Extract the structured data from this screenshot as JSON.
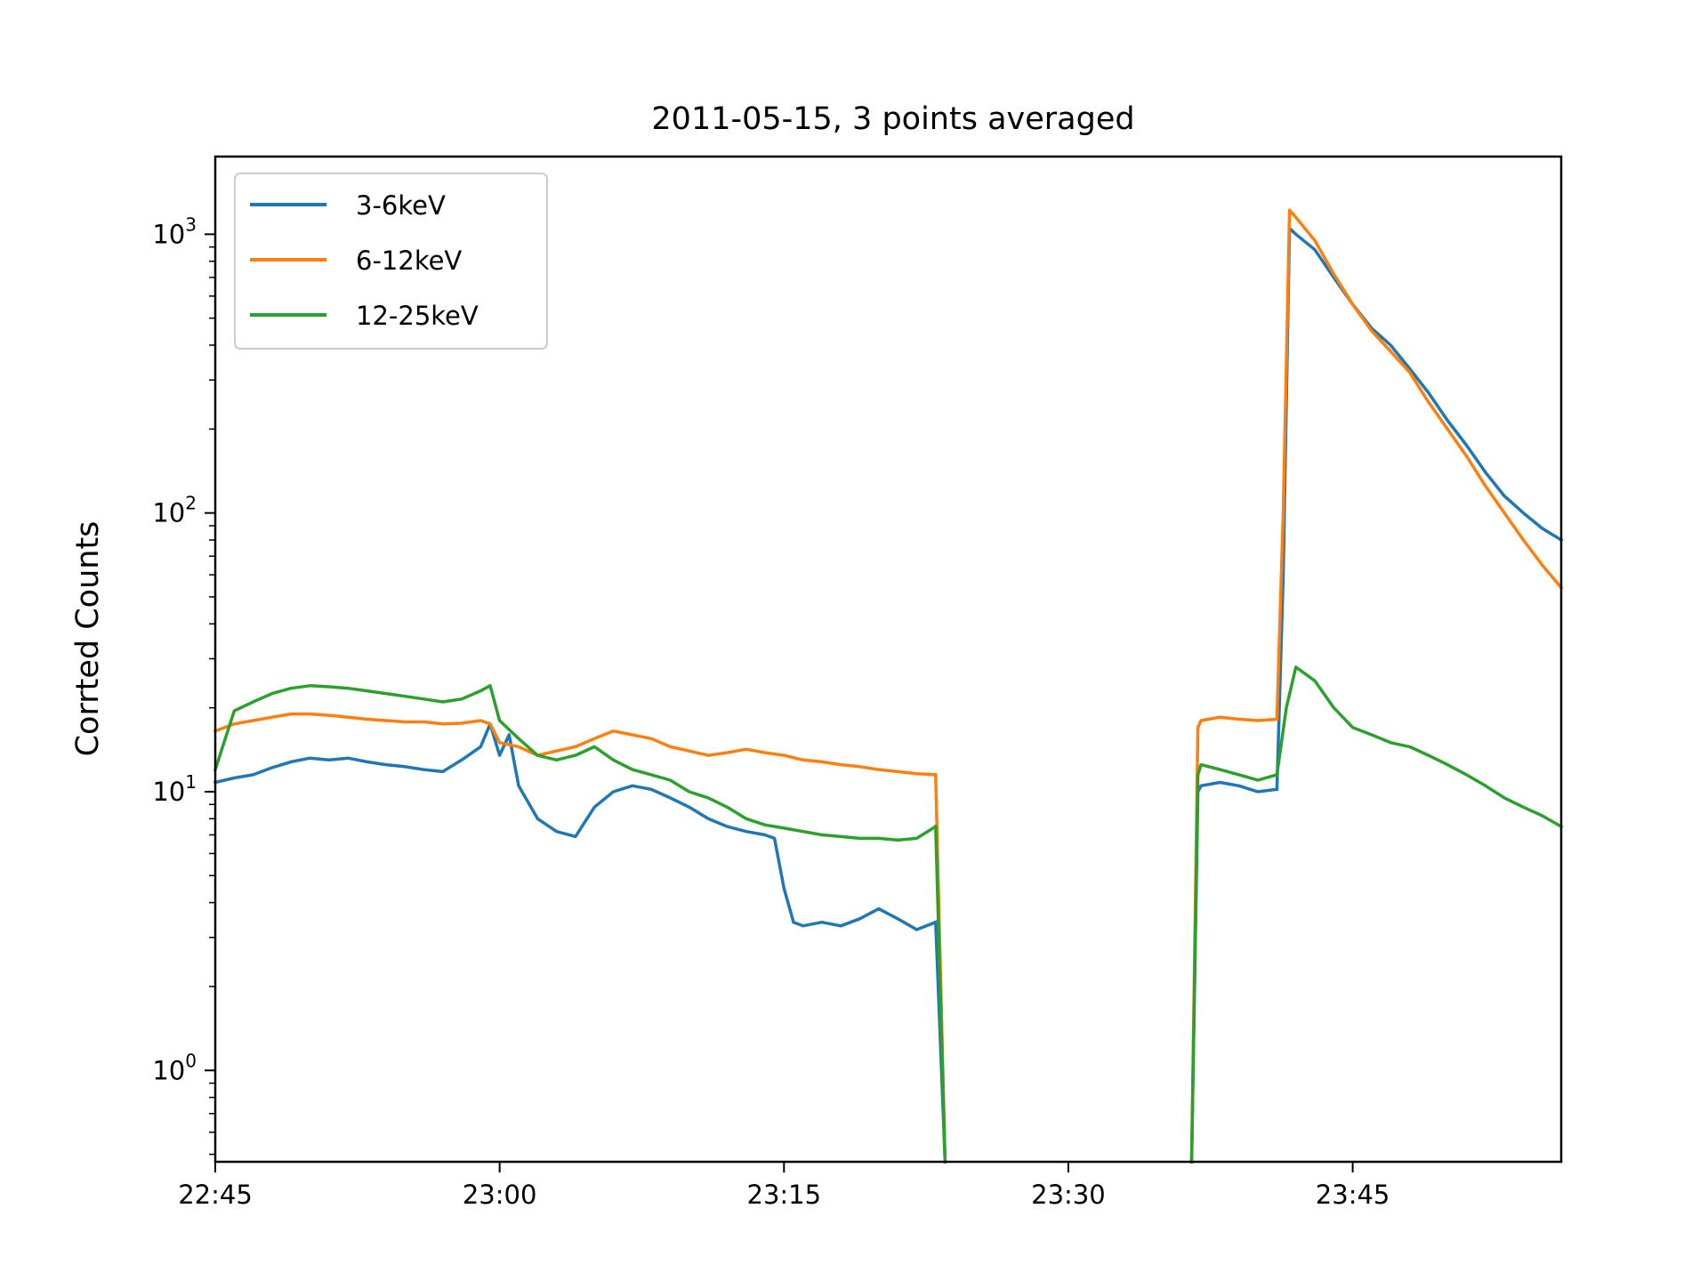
{
  "chart_data": {
    "type": "line",
    "title": "2011-05-15, 3 points averaged",
    "xlabel": "",
    "ylabel": "Corrted Counts",
    "y_scale": "log",
    "ylim": [
      0.47,
      1900
    ],
    "xlim": [
      "22:45",
      "23:56"
    ],
    "x_ticks": [
      "22:45",
      "23:00",
      "23:15",
      "23:30",
      "23:45"
    ],
    "y_ticks": [
      {
        "value": 1,
        "base": "10",
        "exp": "0"
      },
      {
        "value": 10,
        "base": "10",
        "exp": "1"
      },
      {
        "value": 100,
        "base": "10",
        "exp": "2"
      },
      {
        "value": 1000,
        "base": "10",
        "exp": "3"
      }
    ],
    "grid": false,
    "legend_position": "top-left",
    "series": [
      {
        "name": "3-6keV",
        "color": "#1f77b4",
        "segments": [
          [
            [
              "22:45",
              10.8
            ],
            [
              "22:46",
              11.2
            ],
            [
              "22:47",
              11.5
            ],
            [
              "22:48",
              12.2
            ],
            [
              "22:49",
              12.8
            ],
            [
              "22:50",
              13.2
            ],
            [
              "22:51",
              13.0
            ],
            [
              "22:52",
              13.2
            ],
            [
              "22:53",
              12.8
            ],
            [
              "22:54",
              12.5
            ],
            [
              "22:55",
              12.3
            ],
            [
              "22:56",
              12.0
            ],
            [
              "22:57",
              11.8
            ],
            [
              "22:58",
              13.0
            ],
            [
              "22:59",
              14.5
            ],
            [
              "22:59:30",
              17.5
            ],
            [
              "23:00",
              13.5
            ],
            [
              "23:00:30",
              16.0
            ],
            [
              "23:01",
              10.5
            ],
            [
              "23:02",
              8.0
            ],
            [
              "23:03",
              7.2
            ],
            [
              "23:04",
              6.9
            ],
            [
              "23:05",
              8.8
            ],
            [
              "23:06",
              10.0
            ],
            [
              "23:07",
              10.5
            ],
            [
              "23:08",
              10.2
            ],
            [
              "23:09",
              9.5
            ],
            [
              "23:10",
              8.8
            ],
            [
              "23:11",
              8.0
            ],
            [
              "23:12",
              7.5
            ],
            [
              "23:13",
              7.2
            ],
            [
              "23:14",
              7.0
            ],
            [
              "23:14:30",
              6.8
            ],
            [
              "23:15",
              4.5
            ],
            [
              "23:15:30",
              3.4
            ],
            [
              "23:16",
              3.3
            ],
            [
              "23:17",
              3.4
            ],
            [
              "23:18",
              3.3
            ],
            [
              "23:19",
              3.5
            ],
            [
              "23:20",
              3.8
            ],
            [
              "23:21",
              3.5
            ],
            [
              "23:22",
              3.2
            ],
            [
              "23:23",
              3.4
            ]
          ],
          [
            [
              "23:23",
              3.4
            ],
            [
              "23:23:30",
              0.47
            ]
          ]
        ]
      },
      {
        "name": "6-12keV",
        "color": "#ff7f0e",
        "segments": [
          [
            [
              "22:45",
              16.5
            ],
            [
              "22:46",
              17.5
            ],
            [
              "22:47",
              18.0
            ],
            [
              "22:48",
              18.5
            ],
            [
              "22:49",
              19.0
            ],
            [
              "22:50",
              19.0
            ],
            [
              "22:51",
              18.8
            ],
            [
              "22:52",
              18.5
            ],
            [
              "22:53",
              18.2
            ],
            [
              "22:54",
              18.0
            ],
            [
              "22:55",
              17.8
            ],
            [
              "22:56",
              17.8
            ],
            [
              "22:57",
              17.5
            ],
            [
              "22:58",
              17.6
            ],
            [
              "22:59",
              18.0
            ],
            [
              "22:59:30",
              17.5
            ],
            [
              "23:00",
              15.0
            ],
            [
              "23:01",
              14.5
            ],
            [
              "23:02",
              13.5
            ],
            [
              "23:03",
              14.0
            ],
            [
              "23:04",
              14.5
            ],
            [
              "23:05",
              15.5
            ],
            [
              "23:06",
              16.5
            ],
            [
              "23:07",
              16.0
            ],
            [
              "23:08",
              15.5
            ],
            [
              "23:09",
              14.5
            ],
            [
              "23:10",
              14.0
            ],
            [
              "23:11",
              13.5
            ],
            [
              "23:12",
              13.8
            ],
            [
              "23:13",
              14.2
            ],
            [
              "23:14",
              13.8
            ],
            [
              "23:15",
              13.5
            ],
            [
              "23:16",
              13.0
            ],
            [
              "23:17",
              12.8
            ],
            [
              "23:18",
              12.5
            ],
            [
              "23:19",
              12.3
            ],
            [
              "23:20",
              12.0
            ],
            [
              "23:21",
              11.8
            ],
            [
              "23:22",
              11.6
            ],
            [
              "23:23",
              11.5
            ]
          ],
          [
            [
              "23:23",
              11.5
            ],
            [
              "23:23:30",
              0.47
            ]
          ]
        ]
      },
      {
        "name": "12-25keV",
        "color": "#2ca02c",
        "segments": [
          [
            [
              "22:45",
              12.0
            ],
            [
              "22:46",
              19.5
            ],
            [
              "22:47",
              21.0
            ],
            [
              "22:48",
              22.5
            ],
            [
              "22:49",
              23.5
            ],
            [
              "22:50",
              24.0
            ],
            [
              "22:51",
              23.8
            ],
            [
              "22:52",
              23.5
            ],
            [
              "22:53",
              23.0
            ],
            [
              "22:54",
              22.5
            ],
            [
              "22:55",
              22.0
            ],
            [
              "22:56",
              21.5
            ],
            [
              "22:57",
              21.0
            ],
            [
              "22:58",
              21.5
            ],
            [
              "22:59",
              23.0
            ],
            [
              "22:59:30",
              24.0
            ],
            [
              "23:00",
              18.0
            ],
            [
              "23:01",
              15.5
            ],
            [
              "23:02",
              13.5
            ],
            [
              "23:03",
              13.0
            ],
            [
              "23:04",
              13.5
            ],
            [
              "23:05",
              14.5
            ],
            [
              "23:06",
              13.0
            ],
            [
              "23:07",
              12.0
            ],
            [
              "23:08",
              11.5
            ],
            [
              "23:09",
              11.0
            ],
            [
              "23:10",
              10.0
            ],
            [
              "23:11",
              9.5
            ],
            [
              "23:12",
              8.8
            ],
            [
              "23:13",
              8.0
            ],
            [
              "23:14",
              7.6
            ],
            [
              "23:15",
              7.4
            ],
            [
              "23:16",
              7.2
            ],
            [
              "23:17",
              7.0
            ],
            [
              "23:18",
              6.9
            ],
            [
              "23:19",
              6.8
            ],
            [
              "23:20",
              6.8
            ],
            [
              "23:21",
              6.7
            ],
            [
              "23:22",
              6.8
            ],
            [
              "23:23",
              7.5
            ]
          ],
          [
            [
              "23:23",
              7.5
            ],
            [
              "23:23:30",
              0.47
            ]
          ]
        ]
      },
      {
        "name": "3-6keV",
        "color": "#1f77b4",
        "segments": [
          [
            [
              "23:36:30",
              0.47
            ],
            [
              "23:36:50",
              10.0
            ],
            [
              "23:37",
              10.5
            ],
            [
              "23:38",
              10.8
            ],
            [
              "23:39",
              10.5
            ],
            [
              "23:40",
              10.0
            ],
            [
              "23:41",
              10.2
            ]
          ],
          [
            [
              "23:41",
              10.2
            ],
            [
              "23:41:20",
              60
            ],
            [
              "23:41:40",
              1050
            ],
            [
              "23:42",
              1000
            ],
            [
              "23:43",
              880
            ],
            [
              "23:44",
              700
            ],
            [
              "23:45",
              560
            ],
            [
              "23:46",
              460
            ],
            [
              "23:47",
              400
            ],
            [
              "23:48",
              330
            ],
            [
              "23:49",
              270
            ],
            [
              "23:50",
              215
            ],
            [
              "23:51",
              175
            ],
            [
              "23:52",
              140
            ],
            [
              "23:53",
              115
            ],
            [
              "23:54",
              100
            ],
            [
              "23:55",
              88
            ],
            [
              "23:56",
              80
            ]
          ]
        ]
      },
      {
        "name": "6-12keV",
        "color": "#ff7f0e",
        "segments": [
          [
            [
              "23:36:30",
              0.47
            ],
            [
              "23:36:50",
              17.0
            ],
            [
              "23:37",
              18.0
            ],
            [
              "23:38",
              18.5
            ],
            [
              "23:39",
              18.2
            ],
            [
              "23:40",
              18.0
            ],
            [
              "23:41",
              18.2
            ]
          ],
          [
            [
              "23:41",
              18.2
            ],
            [
              "23:41:20",
              100
            ],
            [
              "23:41:40",
              1220
            ],
            [
              "23:42",
              1150
            ],
            [
              "23:43",
              950
            ],
            [
              "23:44",
              720
            ],
            [
              "23:45",
              560
            ],
            [
              "23:46",
              450
            ],
            [
              "23:47",
              380
            ],
            [
              "23:48",
              320
            ],
            [
              "23:49",
              250
            ],
            [
              "23:50",
              200
            ],
            [
              "23:51",
              160
            ],
            [
              "23:52",
              125
            ],
            [
              "23:53",
              100
            ],
            [
              "23:54",
              80
            ],
            [
              "23:55",
              65
            ],
            [
              "23:56",
              54
            ]
          ]
        ]
      },
      {
        "name": "12-25keV",
        "color": "#2ca02c",
        "segments": [
          [
            [
              "23:36:30",
              0.47
            ],
            [
              "23:36:50",
              11.5
            ],
            [
              "23:37",
              12.5
            ],
            [
              "23:38",
              12.0
            ],
            [
              "23:39",
              11.5
            ],
            [
              "23:40",
              11.0
            ],
            [
              "23:41",
              11.5
            ]
          ],
          [
            [
              "23:41",
              11.5
            ],
            [
              "23:41:30",
              20
            ],
            [
              "23:42",
              28.0
            ],
            [
              "23:43",
              25.0
            ],
            [
              "23:44",
              20.0
            ],
            [
              "23:45",
              17.0
            ],
            [
              "23:46",
              16.0
            ],
            [
              "23:47",
              15.0
            ],
            [
              "23:48",
              14.5
            ],
            [
              "23:49",
              13.5
            ],
            [
              "23:50",
              12.5
            ],
            [
              "23:51",
              11.5
            ],
            [
              "23:52",
              10.5
            ],
            [
              "23:53",
              9.5
            ],
            [
              "23:54",
              8.8
            ],
            [
              "23:55",
              8.2
            ],
            [
              "23:56",
              7.5
            ]
          ]
        ]
      }
    ],
    "legend": [
      {
        "name": "3-6keV",
        "color": "#1f77b4"
      },
      {
        "name": "6-12keV",
        "color": "#ff7f0e"
      },
      {
        "name": "12-25keV",
        "color": "#2ca02c"
      }
    ]
  }
}
